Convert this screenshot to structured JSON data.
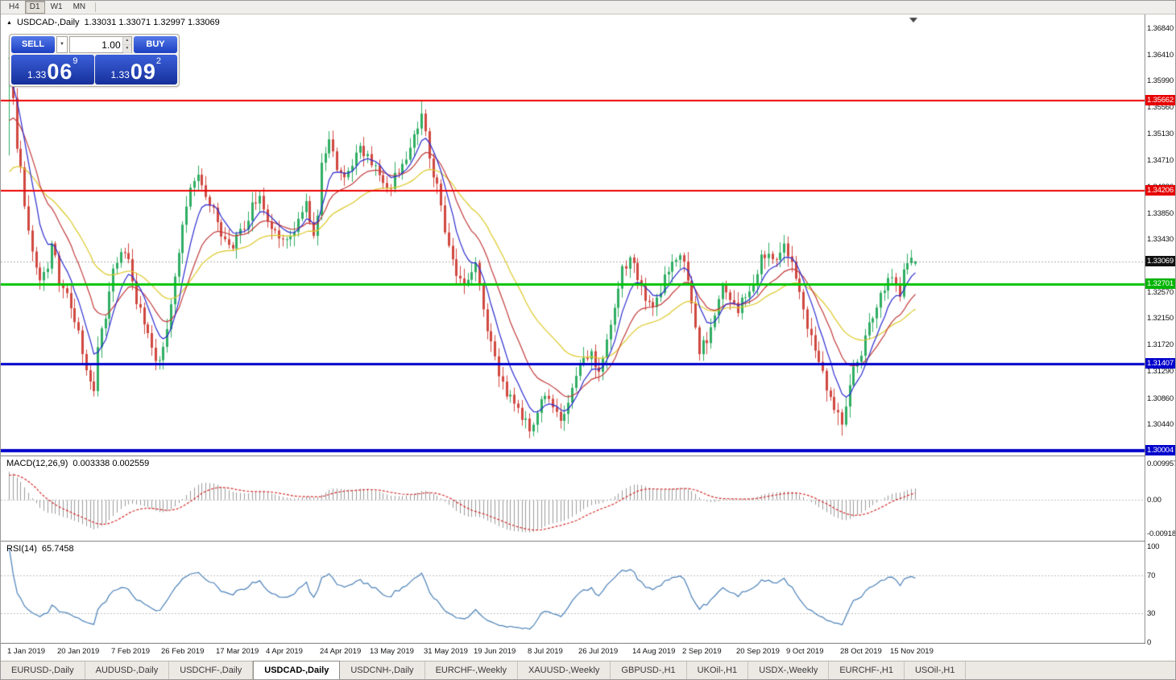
{
  "toolbar": {
    "periods": [
      {
        "label": "H4",
        "active": false
      },
      {
        "label": "D1",
        "active": true
      },
      {
        "label": "W1",
        "active": false
      },
      {
        "label": "MN",
        "active": false
      }
    ]
  },
  "icons": {
    "collapse": "▲",
    "dropdown": "▼",
    "spin_up": "▲",
    "spin_down": "▼"
  },
  "one_click": {
    "sell_label": "SELL",
    "buy_label": "BUY",
    "volume": "1.00",
    "sell_price": {
      "prefix": "1.33",
      "pips": "06",
      "point": "9"
    },
    "buy_price": {
      "prefix": "1.33",
      "pips": "09",
      "point": "2"
    }
  },
  "panes": {
    "main": {
      "title": "USDCAD-,Daily",
      "ohlc": "1.33031 1.33071 1.32997 1.33069"
    },
    "macd": {
      "label": "MACD(12,26,9)",
      "values": "0.003338 0.002559",
      "scale": [
        "0.009957",
        "0.00",
        "-0.00918"
      ]
    },
    "rsi": {
      "label": "RSI(14)",
      "value": "65.7458",
      "scale": [
        "100",
        "70",
        "30",
        "0"
      ]
    }
  },
  "price_scale": {
    "ticks": [
      "1.36840",
      "1.36410",
      "1.35990",
      "1.35560",
      "1.35130",
      "1.34710",
      "1.34280",
      "1.33850",
      "1.33430",
      "1.32570",
      "1.32150",
      "1.31720",
      "1.31290",
      "1.30860",
      "1.30440"
    ],
    "badges": [
      {
        "text": "1.35662",
        "bg": "#e60000",
        "name": "resistance-level-badge"
      },
      {
        "text": "1.34206",
        "bg": "#e60000",
        "name": "resistance-level-badge"
      },
      {
        "text": "1.33069",
        "bg": "#111111",
        "name": "current-price-badge"
      },
      {
        "text": "1.32701",
        "bg": "#00b400",
        "name": "support-level-badge"
      },
      {
        "text": "1.31407",
        "bg": "#0000cc",
        "name": "support-level-badge"
      },
      {
        "text": "1.30004",
        "bg": "#0000cc",
        "name": "support-level-badge"
      }
    ]
  },
  "time_scale": {
    "labels": [
      {
        "text": "1 Jan 2019",
        "bar": 0
      },
      {
        "text": "20 Jan 2019",
        "bar": 13
      },
      {
        "text": "7 Feb 2019",
        "bar": 27
      },
      {
        "text": "26 Feb 2019",
        "bar": 40
      },
      {
        "text": "17 Mar 2019",
        "bar": 54
      },
      {
        "text": "4 Apr 2019",
        "bar": 67
      },
      {
        "text": "24 Apr 2019",
        "bar": 81
      },
      {
        "text": "13 May 2019",
        "bar": 94
      },
      {
        "text": "31 May 2019",
        "bar": 108
      },
      {
        "text": "19 Jun 2019",
        "bar": 121
      },
      {
        "text": "8 Jul 2019",
        "bar": 135
      },
      {
        "text": "26 Jul 2019",
        "bar": 148
      },
      {
        "text": "14 Aug 2019",
        "bar": 162
      },
      {
        "text": "2 Sep 2019",
        "bar": 175
      },
      {
        "text": "20 Sep 2019",
        "bar": 189
      },
      {
        "text": "9 Oct 2019",
        "bar": 202
      },
      {
        "text": "28 Oct 2019",
        "bar": 216
      },
      {
        "text": "15 Nov 2019",
        "bar": 229
      }
    ]
  },
  "tabs": [
    {
      "label": "EURUSD-,Daily",
      "active": false
    },
    {
      "label": "AUDUSD-,Daily",
      "active": false
    },
    {
      "label": "USDCHF-,Daily",
      "active": false
    },
    {
      "label": "USDCAD-,Daily",
      "active": true
    },
    {
      "label": "USDCNH-,Daily",
      "active": false
    },
    {
      "label": "EURCHF-,Weekly",
      "active": false
    },
    {
      "label": "XAUUSD-,Weekly",
      "active": false
    },
    {
      "label": "GBPUSD-,H1",
      "active": false
    },
    {
      "label": "UKOil-,H1",
      "active": false
    },
    {
      "label": "USDX-,Weekly",
      "active": false
    },
    {
      "label": "EURCHF-,H1",
      "active": false
    },
    {
      "label": "USOil-,H1",
      "active": false
    }
  ],
  "chart_data": {
    "type": "candlestick",
    "symbol": "USDCAD",
    "period": "Daily",
    "bars": 236,
    "current": {
      "open": 1.33031,
      "high": 1.33071,
      "low": 1.32997,
      "close": 1.33069
    },
    "current_price": 1.33069,
    "price_range": {
      "top": 1.3706,
      "bottom": 1.2993
    },
    "macd_scale": {
      "top_value": 0.009957,
      "bottom_value": -0.00918,
      "current_main": 0.003338,
      "current_signal": 0.002559
    },
    "rsi_current": 65.7458,
    "levels": [
      {
        "price": 1.35662,
        "color": "#ee0000",
        "width": 2
      },
      {
        "price": 1.34206,
        "color": "#ee0000",
        "width": 2
      },
      {
        "price": 1.32701,
        "color": "#00c400",
        "width": 3
      },
      {
        "price": 1.31407,
        "color": "#0000cc",
        "width": 3
      },
      {
        "price": 1.30004,
        "color": "#0000cc",
        "width": 4
      }
    ],
    "indicators": {
      "ma_fast": 7,
      "ma_mid": 16,
      "ma_slow": 34,
      "macd": [
        12,
        26,
        9
      ],
      "rsi": 14
    },
    "colors": {
      "bull": "#2fae63",
      "bear": "#d14840",
      "ma_fast": "#2b2bd0",
      "ma_mid": "#c23a3a",
      "ma_slow": "#ddc928",
      "macd_hist": "#9c9c9c",
      "macd_signal": "#d42a2a",
      "rsi": "#4a80b8",
      "current_line": "#b0b0b0",
      "axis": "#7b7b7b",
      "grid_dash": "#c0c0c0"
    },
    "anchors": [
      [
        0,
        1.363
      ],
      [
        1,
        1.3572
      ],
      [
        2,
        1.3498
      ],
      [
        4,
        1.3402
      ],
      [
        6,
        1.333
      ],
      [
        8,
        1.3282
      ],
      [
        10,
        1.33
      ],
      [
        11,
        1.3342
      ],
      [
        13,
        1.3278
      ],
      [
        15,
        1.3248
      ],
      [
        17,
        1.3212
      ],
      [
        19,
        1.3158
      ],
      [
        21,
        1.3108
      ],
      [
        22,
        1.3096
      ],
      [
        23,
        1.3158
      ],
      [
        25,
        1.3218
      ],
      [
        27,
        1.3288
      ],
      [
        29,
        1.3318
      ],
      [
        31,
        1.3302
      ],
      [
        33,
        1.3244
      ],
      [
        35,
        1.3208
      ],
      [
        37,
        1.3168
      ],
      [
        39,
        1.3144
      ],
      [
        41,
        1.3204
      ],
      [
        43,
        1.3288
      ],
      [
        45,
        1.3358
      ],
      [
        47,
        1.3418
      ],
      [
        49,
        1.3444
      ],
      [
        51,
        1.342
      ],
      [
        53,
        1.3388
      ],
      [
        55,
        1.3348
      ],
      [
        57,
        1.3328
      ],
      [
        59,
        1.3344
      ],
      [
        61,
        1.3364
      ],
      [
        63,
        1.3394
      ],
      [
        65,
        1.3418
      ],
      [
        67,
        1.3378
      ],
      [
        69,
        1.3348
      ],
      [
        71,
        1.3334
      ],
      [
        73,
        1.335
      ],
      [
        75,
        1.3374
      ],
      [
        77,
        1.3394
      ],
      [
        79,
        1.3344
      ],
      [
        80,
        1.3388
      ],
      [
        81,
        1.3472
      ],
      [
        83,
        1.3494
      ],
      [
        85,
        1.3458
      ],
      [
        87,
        1.3444
      ],
      [
        89,
        1.3468
      ],
      [
        91,
        1.3484
      ],
      [
        93,
        1.3488
      ],
      [
        95,
        1.3454
      ],
      [
        97,
        1.3434
      ],
      [
        99,
        1.3428
      ],
      [
        101,
        1.3454
      ],
      [
        103,
        1.3474
      ],
      [
        105,
        1.3504
      ],
      [
        107,
        1.3548
      ],
      [
        108,
        1.3518
      ],
      [
        109,
        1.3474
      ],
      [
        111,
        1.3428
      ],
      [
        113,
        1.3364
      ],
      [
        115,
        1.3308
      ],
      [
        117,
        1.3278
      ],
      [
        119,
        1.3268
      ],
      [
        121,
        1.3298
      ],
      [
        123,
        1.3234
      ],
      [
        125,
        1.3168
      ],
      [
        127,
        1.3118
      ],
      [
        129,
        1.3088
      ],
      [
        131,
        1.3074
      ],
      [
        133,
        1.305
      ],
      [
        135,
        1.3042
      ],
      [
        137,
        1.3058
      ],
      [
        139,
        1.3098
      ],
      [
        141,
        1.3078
      ],
      [
        143,
        1.3052
      ],
      [
        145,
        1.3088
      ],
      [
        147,
        1.3124
      ],
      [
        149,
        1.3148
      ],
      [
        151,
        1.3158
      ],
      [
        153,
        1.3134
      ],
      [
        155,
        1.3178
      ],
      [
        157,
        1.3238
      ],
      [
        159,
        1.3292
      ],
      [
        161,
        1.3318
      ],
      [
        163,
        1.3284
      ],
      [
        165,
        1.3244
      ],
      [
        167,
        1.3228
      ],
      [
        169,
        1.3264
      ],
      [
        171,
        1.3298
      ],
      [
        173,
        1.3318
      ],
      [
        175,
        1.3298
      ],
      [
        177,
        1.3238
      ],
      [
        179,
        1.3164
      ],
      [
        181,
        1.3184
      ],
      [
        183,
        1.3228
      ],
      [
        185,
        1.3268
      ],
      [
        187,
        1.3244
      ],
      [
        189,
        1.3228
      ],
      [
        191,
        1.3254
      ],
      [
        193,
        1.3278
      ],
      [
        195,
        1.3308
      ],
      [
        197,
        1.3328
      ],
      [
        199,
        1.3308
      ],
      [
        201,
        1.3334
      ],
      [
        203,
        1.3298
      ],
      [
        205,
        1.3248
      ],
      [
        207,
        1.3208
      ],
      [
        209,
        1.3168
      ],
      [
        211,
        1.3128
      ],
      [
        213,
        1.3084
      ],
      [
        215,
        1.3054
      ],
      [
        216,
        1.3044
      ],
      [
        217,
        1.3078
      ],
      [
        219,
        1.3128
      ],
      [
        221,
        1.3164
      ],
      [
        223,
        1.3204
      ],
      [
        225,
        1.3234
      ],
      [
        227,
        1.3264
      ],
      [
        229,
        1.3284
      ],
      [
        230,
        1.3266
      ],
      [
        231,
        1.3254
      ],
      [
        232,
        1.3284
      ],
      [
        233,
        1.3304
      ],
      [
        234,
        1.3314
      ],
      [
        235,
        1.33069
      ]
    ]
  }
}
